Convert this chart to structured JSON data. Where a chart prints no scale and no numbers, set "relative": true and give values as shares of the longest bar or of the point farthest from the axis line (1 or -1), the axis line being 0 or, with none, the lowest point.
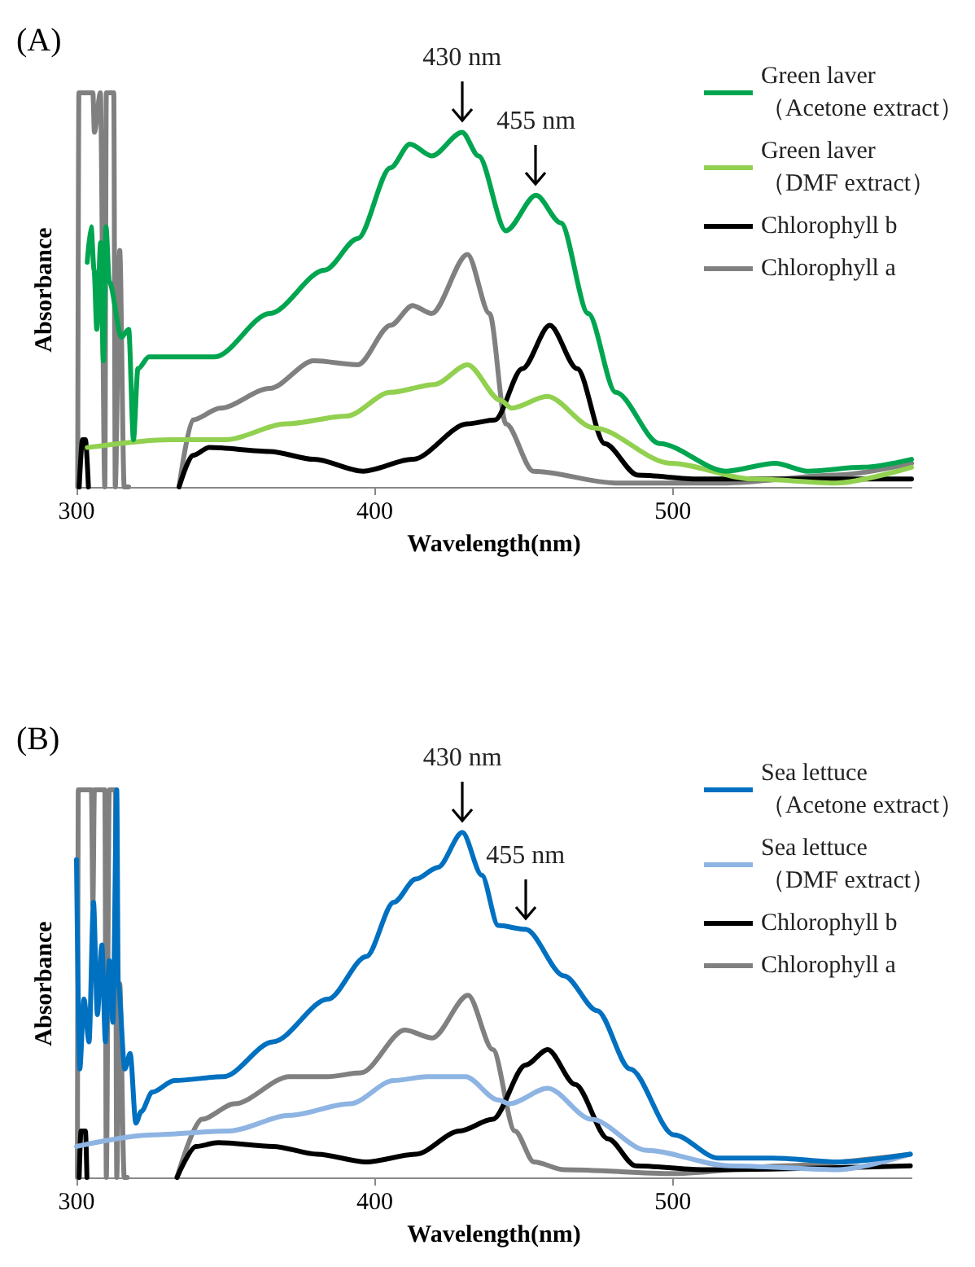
{
  "chart_data": [
    {
      "type": "line",
      "title": "(A)",
      "xlabel": "Wavelength(nm)",
      "ylabel": "Absorbance",
      "relative": true,
      "xlim": [
        300,
        580
      ],
      "xticks": [
        300,
        400,
        500
      ],
      "grid": false,
      "legend": "top right",
      "marker": "none",
      "line_style": "solid",
      "annotations": [
        {
          "text": "430 nm",
          "x": 429.3,
          "y": 0.9
        },
        {
          "text": "455 nm",
          "x": 454.1,
          "y": 0.74
        }
      ],
      "series": [
        {
          "name": "Green laver\n（Acetone extract）",
          "color": "#00a550",
          "x": [
            303.6,
            304.9,
            305.9,
            306.8,
            308.1,
            309,
            309.9,
            311,
            315.1,
            317.5,
            319.1,
            320.6,
            324.3,
            331.7,
            346.4,
            364.8,
            383.2,
            394.3,
            405.3,
            411.8,
            419.1,
            429.3,
            434.8,
            444,
            454.1,
            462.4,
            471.6,
            480.8,
            495.5,
            517.7,
            534.3,
            545.3,
            563.7,
            580
          ],
          "values": [
            0.57,
            0.66,
            0.55,
            0.4,
            0.62,
            0.32,
            0.66,
            0.52,
            0.38,
            0.4,
            0.12,
            0.3,
            0.33,
            0.33,
            0.33,
            0.44,
            0.55,
            0.63,
            0.81,
            0.87,
            0.84,
            0.9,
            0.84,
            0.65,
            0.74,
            0.67,
            0.44,
            0.24,
            0.11,
            0.04,
            0.06,
            0.04,
            0.05,
            0.07
          ]
        },
        {
          "name": "Green laver\n（DMF extract）",
          "color": "#92d050",
          "x": [
            303.6,
            331.7,
            350.1,
            370.3,
            390.6,
            405.3,
            420.1,
            431.1,
            442.2,
            445.9,
            457.8,
            473.5,
            499.2,
            526.9,
            554.5,
            580
          ],
          "values": [
            0.1,
            0.12,
            0.12,
            0.16,
            0.18,
            0.24,
            0.26,
            0.31,
            0.22,
            0.2,
            0.23,
            0.15,
            0.06,
            0.02,
            0.01,
            0.05
          ]
        },
        {
          "name": "Chlorophyll b",
          "color": "#000000",
          "x": [
            300.9,
            302,
            303,
            304,
            320,
            334.4,
            339,
            344.5,
            364.8,
            379.6,
            396.1,
            412.7,
            431.1,
            440.3,
            449.5,
            458.7,
            467.9,
            477.1,
            488.2,
            508.5,
            580
          ],
          "values": [
            0,
            0.12,
            0.12,
            0,
            null,
            0,
            0.08,
            0.1,
            0.09,
            0.07,
            0.04,
            0.07,
            0.16,
            0.17,
            0.3,
            0.41,
            0.3,
            0.11,
            0.03,
            0.02,
            0.02
          ]
        },
        {
          "name": "Chlorophyll a",
          "color": "#808080",
          "x": [
            300.4,
            300.8,
            305.5,
            306,
            308,
            309.5,
            310,
            312.5,
            313,
            314.5,
            316,
            317.5,
            325,
            334.4,
            339,
            348.2,
            364.8,
            379.6,
            394.3,
            405.3,
            412.7,
            419.1,
            431.1,
            438.5,
            444,
            453.2,
            480.8,
            517.7,
            554.5,
            580
          ],
          "values": [
            0,
            1,
            1,
            0.9,
            1,
            0,
            1,
            1,
            0,
            0.6,
            0,
            0,
            null,
            0,
            0.17,
            0.2,
            0.25,
            0.32,
            0.31,
            0.41,
            0.46,
            0.44,
            0.59,
            0.44,
            0.16,
            0.04,
            0.01,
            0.01,
            0.03,
            0.06
          ]
        }
      ]
    },
    {
      "type": "line",
      "title": "(B)",
      "xlabel": "Wavelength(nm)",
      "ylabel": "Absorbance",
      "relative": true,
      "xlim": [
        300,
        580
      ],
      "xticks": [
        300,
        400,
        500
      ],
      "grid": false,
      "legend": "top right",
      "marker": "none",
      "line_style": "solid",
      "annotations": [
        {
          "text": "430 nm",
          "x": 429.4,
          "y": 0.89
        },
        {
          "text": "455 nm",
          "x": 450.6,
          "y": 0.64
        }
      ],
      "series": [
        {
          "name": "Sea lettuce\n（Acetone extract）",
          "color": "#0070c0",
          "x": [
            300,
            301.1,
            302.5,
            304.2,
            305.7,
            307,
            308.5,
            309.7,
            311,
            312.2,
            313.5,
            314,
            316.2,
            318,
            319.9,
            321.7,
            325.4,
            332.8,
            349.3,
            365.9,
            384.3,
            397.2,
            406.4,
            413.8,
            421.2,
            429.4,
            435.9,
            441.4,
            450.6,
            463.5,
            474.6,
            485.6,
            500.3,
            515.1,
            533.5,
            555.6,
            579.6
          ],
          "values": [
            0.82,
            0.28,
            0.46,
            0.35,
            0.71,
            0.42,
            0.6,
            0.35,
            0.56,
            0.4,
            1,
            0.5,
            0.28,
            0.32,
            0.14,
            0.17,
            0.22,
            0.25,
            0.26,
            0.35,
            0.46,
            0.57,
            0.71,
            0.77,
            0.8,
            0.89,
            0.78,
            0.65,
            0.64,
            0.52,
            0.43,
            0.28,
            0.11,
            0.05,
            0.05,
            0.04,
            0.06
          ]
        },
        {
          "name": "Sea lettuce\n（DMF extract）",
          "color": "#8db4e2",
          "x": [
            300,
            325.4,
            351.2,
            371.4,
            391.7,
            406.4,
            417.5,
            430.4,
            441.4,
            445.1,
            458,
            472.7,
            491.2,
            518.8,
            555.6,
            579.6
          ],
          "values": [
            0.08,
            0.11,
            0.12,
            0.16,
            0.19,
            0.25,
            0.26,
            0.26,
            0.2,
            0.19,
            0.23,
            0.15,
            0.07,
            0.03,
            0.02,
            0.06
          ]
        },
        {
          "name": "Chlorophyll b",
          "color": "#000000",
          "x": [
            300.9,
            301.5,
            303,
            303.5,
            320,
            333.7,
            340.1,
            347.5,
            365.9,
            380.7,
            397.2,
            413.8,
            428.5,
            439.6,
            450.6,
            458,
            467.2,
            478.2,
            487.5,
            509.6,
            579.6
          ],
          "values": [
            0,
            0.12,
            0.12,
            0,
            null,
            0,
            0.08,
            0.09,
            0.08,
            0.06,
            0.04,
            0.06,
            0.12,
            0.15,
            0.29,
            0.33,
            0.24,
            0.1,
            0.03,
            0.02,
            0.03
          ]
        },
        {
          "name": "Chlorophyll a",
          "color": "#808080",
          "x": [
            300.3,
            300.6,
            305,
            305.5,
            306,
            309.5,
            310,
            311,
            313,
            313.5,
            314.5,
            316,
            317,
            325,
            333.7,
            342,
            353,
            371.4,
            384.3,
            395.4,
            410.1,
            419.3,
            431.3,
            439.6,
            447,
            453.4,
            463.5,
            500.3,
            537.2,
            579.6
          ],
          "values": [
            0,
            1,
            1,
            0.7,
            1,
            1,
            0,
            1,
            1,
            0,
            0.5,
            0,
            0,
            null,
            0,
            0.15,
            0.19,
            0.26,
            0.26,
            0.27,
            0.38,
            0.36,
            0.47,
            0.33,
            0.12,
            0.04,
            0.02,
            0.01,
            0.03,
            0.06
          ]
        }
      ]
    }
  ]
}
